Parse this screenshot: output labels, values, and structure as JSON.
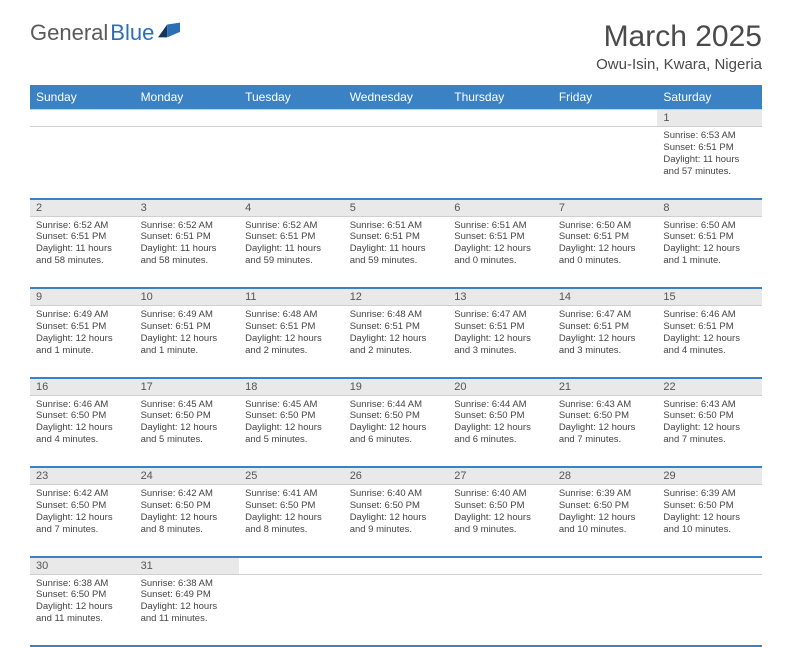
{
  "brand": {
    "general": "General",
    "blue": "Blue"
  },
  "colors": {
    "header_bg": "#3a82c4",
    "header_text": "#ffffff",
    "daynum_bg": "#e9e9e9",
    "week_sep": "#3a82c4",
    "text": "#444444",
    "title": "#4a4a4a"
  },
  "title": "March 2025",
  "location": "Owu-Isin, Kwara, Nigeria",
  "weekdays": [
    "Sunday",
    "Monday",
    "Tuesday",
    "Wednesday",
    "Thursday",
    "Friday",
    "Saturday"
  ],
  "weeks": [
    [
      null,
      null,
      null,
      null,
      null,
      null,
      {
        "n": "1",
        "sr": "Sunrise: 6:53 AM",
        "ss": "Sunset: 6:51 PM",
        "dl": "Daylight: 11 hours and 57 minutes."
      }
    ],
    [
      {
        "n": "2",
        "sr": "Sunrise: 6:52 AM",
        "ss": "Sunset: 6:51 PM",
        "dl": "Daylight: 11 hours and 58 minutes."
      },
      {
        "n": "3",
        "sr": "Sunrise: 6:52 AM",
        "ss": "Sunset: 6:51 PM",
        "dl": "Daylight: 11 hours and 58 minutes."
      },
      {
        "n": "4",
        "sr": "Sunrise: 6:52 AM",
        "ss": "Sunset: 6:51 PM",
        "dl": "Daylight: 11 hours and 59 minutes."
      },
      {
        "n": "5",
        "sr": "Sunrise: 6:51 AM",
        "ss": "Sunset: 6:51 PM",
        "dl": "Daylight: 11 hours and 59 minutes."
      },
      {
        "n": "6",
        "sr": "Sunrise: 6:51 AM",
        "ss": "Sunset: 6:51 PM",
        "dl": "Daylight: 12 hours and 0 minutes."
      },
      {
        "n": "7",
        "sr": "Sunrise: 6:50 AM",
        "ss": "Sunset: 6:51 PM",
        "dl": "Daylight: 12 hours and 0 minutes."
      },
      {
        "n": "8",
        "sr": "Sunrise: 6:50 AM",
        "ss": "Sunset: 6:51 PM",
        "dl": "Daylight: 12 hours and 1 minute."
      }
    ],
    [
      {
        "n": "9",
        "sr": "Sunrise: 6:49 AM",
        "ss": "Sunset: 6:51 PM",
        "dl": "Daylight: 12 hours and 1 minute."
      },
      {
        "n": "10",
        "sr": "Sunrise: 6:49 AM",
        "ss": "Sunset: 6:51 PM",
        "dl": "Daylight: 12 hours and 1 minute."
      },
      {
        "n": "11",
        "sr": "Sunrise: 6:48 AM",
        "ss": "Sunset: 6:51 PM",
        "dl": "Daylight: 12 hours and 2 minutes."
      },
      {
        "n": "12",
        "sr": "Sunrise: 6:48 AM",
        "ss": "Sunset: 6:51 PM",
        "dl": "Daylight: 12 hours and 2 minutes."
      },
      {
        "n": "13",
        "sr": "Sunrise: 6:47 AM",
        "ss": "Sunset: 6:51 PM",
        "dl": "Daylight: 12 hours and 3 minutes."
      },
      {
        "n": "14",
        "sr": "Sunrise: 6:47 AM",
        "ss": "Sunset: 6:51 PM",
        "dl": "Daylight: 12 hours and 3 minutes."
      },
      {
        "n": "15",
        "sr": "Sunrise: 6:46 AM",
        "ss": "Sunset: 6:51 PM",
        "dl": "Daylight: 12 hours and 4 minutes."
      }
    ],
    [
      {
        "n": "16",
        "sr": "Sunrise: 6:46 AM",
        "ss": "Sunset: 6:50 PM",
        "dl": "Daylight: 12 hours and 4 minutes."
      },
      {
        "n": "17",
        "sr": "Sunrise: 6:45 AM",
        "ss": "Sunset: 6:50 PM",
        "dl": "Daylight: 12 hours and 5 minutes."
      },
      {
        "n": "18",
        "sr": "Sunrise: 6:45 AM",
        "ss": "Sunset: 6:50 PM",
        "dl": "Daylight: 12 hours and 5 minutes."
      },
      {
        "n": "19",
        "sr": "Sunrise: 6:44 AM",
        "ss": "Sunset: 6:50 PM",
        "dl": "Daylight: 12 hours and 6 minutes."
      },
      {
        "n": "20",
        "sr": "Sunrise: 6:44 AM",
        "ss": "Sunset: 6:50 PM",
        "dl": "Daylight: 12 hours and 6 minutes."
      },
      {
        "n": "21",
        "sr": "Sunrise: 6:43 AM",
        "ss": "Sunset: 6:50 PM",
        "dl": "Daylight: 12 hours and 7 minutes."
      },
      {
        "n": "22",
        "sr": "Sunrise: 6:43 AM",
        "ss": "Sunset: 6:50 PM",
        "dl": "Daylight: 12 hours and 7 minutes."
      }
    ],
    [
      {
        "n": "23",
        "sr": "Sunrise: 6:42 AM",
        "ss": "Sunset: 6:50 PM",
        "dl": "Daylight: 12 hours and 7 minutes."
      },
      {
        "n": "24",
        "sr": "Sunrise: 6:42 AM",
        "ss": "Sunset: 6:50 PM",
        "dl": "Daylight: 12 hours and 8 minutes."
      },
      {
        "n": "25",
        "sr": "Sunrise: 6:41 AM",
        "ss": "Sunset: 6:50 PM",
        "dl": "Daylight: 12 hours and 8 minutes."
      },
      {
        "n": "26",
        "sr": "Sunrise: 6:40 AM",
        "ss": "Sunset: 6:50 PM",
        "dl": "Daylight: 12 hours and 9 minutes."
      },
      {
        "n": "27",
        "sr": "Sunrise: 6:40 AM",
        "ss": "Sunset: 6:50 PM",
        "dl": "Daylight: 12 hours and 9 minutes."
      },
      {
        "n": "28",
        "sr": "Sunrise: 6:39 AM",
        "ss": "Sunset: 6:50 PM",
        "dl": "Daylight: 12 hours and 10 minutes."
      },
      {
        "n": "29",
        "sr": "Sunrise: 6:39 AM",
        "ss": "Sunset: 6:50 PM",
        "dl": "Daylight: 12 hours and 10 minutes."
      }
    ],
    [
      {
        "n": "30",
        "sr": "Sunrise: 6:38 AM",
        "ss": "Sunset: 6:50 PM",
        "dl": "Daylight: 12 hours and 11 minutes."
      },
      {
        "n": "31",
        "sr": "Sunrise: 6:38 AM",
        "ss": "Sunset: 6:49 PM",
        "dl": "Daylight: 12 hours and 11 minutes."
      },
      null,
      null,
      null,
      null,
      null
    ]
  ]
}
